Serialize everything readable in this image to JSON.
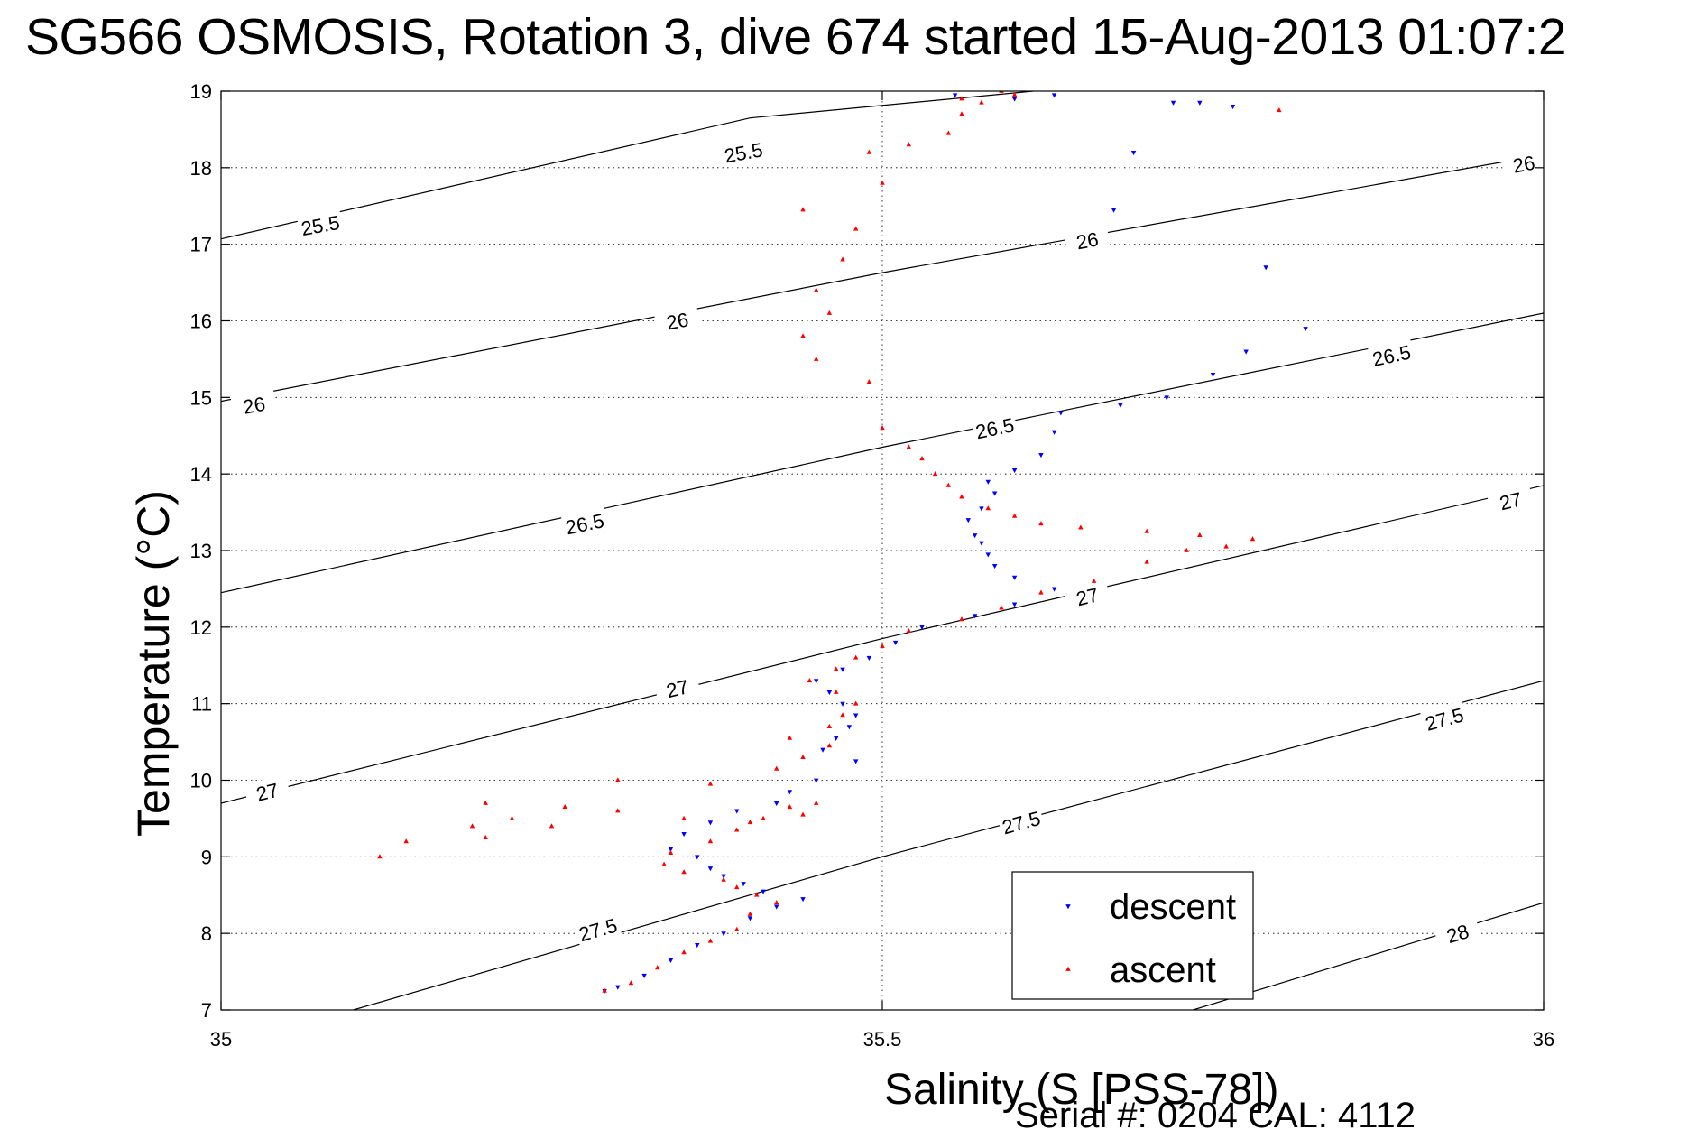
{
  "title": "SG566 OSMOSIS, Rotation 3, dive 674 started 15-Aug-2013 01:07:2",
  "footer": "Serial #: 0204  CAL: 4112",
  "chart_data": {
    "type": "scatter",
    "xlabel": "Salinity (S [PSS-78])",
    "ylabel": "Temperature (°C)",
    "xlim": [
      35,
      36
    ],
    "ylim": [
      7,
      19
    ],
    "xticks": [
      "35",
      "35.5",
      "36"
    ],
    "yticks": [
      "7",
      "8",
      "9",
      "10",
      "11",
      "12",
      "13",
      "14",
      "15",
      "16",
      "17",
      "18",
      "19"
    ],
    "grid": "dotted at x = 35.5 and at integer temperatures",
    "legend_position": "bottom-right",
    "colors": {
      "descent": "#0000ff",
      "ascent": "#ff0000",
      "contour": "#000000"
    },
    "contour_labels": [
      "25.5",
      "26",
      "26.5",
      "27",
      "27.5",
      "28"
    ],
    "series": [
      {
        "name": "descent",
        "marker": "triangle-down",
        "points": [
          [
            35.29,
            7.25
          ],
          [
            35.3,
            7.3
          ],
          [
            35.32,
            7.45
          ],
          [
            35.34,
            7.65
          ],
          [
            35.36,
            7.85
          ],
          [
            35.38,
            8.0
          ],
          [
            35.4,
            8.2
          ],
          [
            35.42,
            8.35
          ],
          [
            35.44,
            8.45
          ],
          [
            35.41,
            8.55
          ],
          [
            35.395,
            8.65
          ],
          [
            35.38,
            8.75
          ],
          [
            35.37,
            8.85
          ],
          [
            35.36,
            9.0
          ],
          [
            35.34,
            9.1
          ],
          [
            35.35,
            9.3
          ],
          [
            35.37,
            9.45
          ],
          [
            35.39,
            9.6
          ],
          [
            35.42,
            9.7
          ],
          [
            35.43,
            9.85
          ],
          [
            35.45,
            10.0
          ],
          [
            35.48,
            10.25
          ],
          [
            35.455,
            10.4
          ],
          [
            35.465,
            10.55
          ],
          [
            35.475,
            10.7
          ],
          [
            35.48,
            10.85
          ],
          [
            35.47,
            11.0
          ],
          [
            35.46,
            11.15
          ],
          [
            35.45,
            11.3
          ],
          [
            35.47,
            11.45
          ],
          [
            35.49,
            11.6
          ],
          [
            35.51,
            11.8
          ],
          [
            35.53,
            12.0
          ],
          [
            35.57,
            12.15
          ],
          [
            35.6,
            12.3
          ],
          [
            35.63,
            12.5
          ],
          [
            35.6,
            12.65
          ],
          [
            35.585,
            12.8
          ],
          [
            35.58,
            12.95
          ],
          [
            35.575,
            13.1
          ],
          [
            35.57,
            13.2
          ],
          [
            35.565,
            13.4
          ],
          [
            35.575,
            13.55
          ],
          [
            35.585,
            13.75
          ],
          [
            35.58,
            13.9
          ],
          [
            35.6,
            14.05
          ],
          [
            35.62,
            14.25
          ],
          [
            35.63,
            14.55
          ],
          [
            35.635,
            14.8
          ],
          [
            35.68,
            14.9
          ],
          [
            35.715,
            15.0
          ],
          [
            35.75,
            15.3
          ],
          [
            35.775,
            15.6
          ],
          [
            35.82,
            15.9
          ],
          [
            35.79,
            16.7
          ],
          [
            35.675,
            17.45
          ],
          [
            35.69,
            18.2
          ],
          [
            35.72,
            18.85
          ],
          [
            35.63,
            18.95
          ],
          [
            35.6,
            18.9
          ],
          [
            35.555,
            18.95
          ],
          [
            35.765,
            18.8
          ],
          [
            35.74,
            18.85
          ]
        ]
      },
      {
        "name": "ascent",
        "marker": "triangle-up",
        "points": [
          [
            35.29,
            7.25
          ],
          [
            35.31,
            7.35
          ],
          [
            35.33,
            7.55
          ],
          [
            35.35,
            7.75
          ],
          [
            35.37,
            7.9
          ],
          [
            35.39,
            8.05
          ],
          [
            35.4,
            8.25
          ],
          [
            35.42,
            8.4
          ],
          [
            35.405,
            8.5
          ],
          [
            35.39,
            8.6
          ],
          [
            35.38,
            8.7
          ],
          [
            35.35,
            8.8
          ],
          [
            35.335,
            8.9
          ],
          [
            35.34,
            9.05
          ],
          [
            35.37,
            9.2
          ],
          [
            35.39,
            9.35
          ],
          [
            35.41,
            9.5
          ],
          [
            35.43,
            9.65
          ],
          [
            35.45,
            9.7
          ],
          [
            35.44,
            9.55
          ],
          [
            35.4,
            9.45
          ],
          [
            35.35,
            9.5
          ],
          [
            35.3,
            9.6
          ],
          [
            35.26,
            9.65
          ],
          [
            35.22,
            9.5
          ],
          [
            35.2,
            9.7
          ],
          [
            35.3,
            10.0
          ],
          [
            35.19,
            9.4
          ],
          [
            35.14,
            9.2
          ],
          [
            35.12,
            9.0
          ],
          [
            35.2,
            9.25
          ],
          [
            35.25,
            9.4
          ],
          [
            35.37,
            9.95
          ],
          [
            35.42,
            10.15
          ],
          [
            35.44,
            10.3
          ],
          [
            35.46,
            10.45
          ],
          [
            35.43,
            10.55
          ],
          [
            35.46,
            10.7
          ],
          [
            35.47,
            10.85
          ],
          [
            35.48,
            11.0
          ],
          [
            35.465,
            11.15
          ],
          [
            35.445,
            11.3
          ],
          [
            35.465,
            11.45
          ],
          [
            35.48,
            11.6
          ],
          [
            35.5,
            11.75
          ],
          [
            35.52,
            11.95
          ],
          [
            35.56,
            12.1
          ],
          [
            35.59,
            12.25
          ],
          [
            35.62,
            12.45
          ],
          [
            35.66,
            12.6
          ],
          [
            35.7,
            12.85
          ],
          [
            35.73,
            13.0
          ],
          [
            35.76,
            13.05
          ],
          [
            35.78,
            13.15
          ],
          [
            35.74,
            13.2
          ],
          [
            35.7,
            13.25
          ],
          [
            35.65,
            13.3
          ],
          [
            35.62,
            13.35
          ],
          [
            35.6,
            13.45
          ],
          [
            35.58,
            13.55
          ],
          [
            35.56,
            13.7
          ],
          [
            35.55,
            13.85
          ],
          [
            35.54,
            14.0
          ],
          [
            35.53,
            14.2
          ],
          [
            35.52,
            14.35
          ],
          [
            35.5,
            14.6
          ],
          [
            35.49,
            15.2
          ],
          [
            35.45,
            15.5
          ],
          [
            35.44,
            15.8
          ],
          [
            35.46,
            16.1
          ],
          [
            35.45,
            16.4
          ],
          [
            35.47,
            16.8
          ],
          [
            35.48,
            17.2
          ],
          [
            35.44,
            17.45
          ],
          [
            35.5,
            17.8
          ],
          [
            35.49,
            18.2
          ],
          [
            35.52,
            18.3
          ],
          [
            35.55,
            18.45
          ],
          [
            35.56,
            18.7
          ],
          [
            35.575,
            18.85
          ],
          [
            35.6,
            18.95
          ],
          [
            35.59,
            19.0
          ],
          [
            35.56,
            18.9
          ],
          [
            35.8,
            18.75
          ]
        ]
      }
    ],
    "sigma_theta_contours": [
      {
        "label": "25.5",
        "points": [
          [
            35.0,
            17.07
          ],
          [
            35.4,
            18.65
          ],
          [
            35.614,
            19.0
          ]
        ]
      },
      {
        "label": "26",
        "points": [
          [
            35.0,
            14.95
          ],
          [
            35.5,
            16.63
          ],
          [
            36.0,
            18.17
          ]
        ]
      },
      {
        "label": "26.5",
        "points": [
          [
            35.0,
            12.45
          ],
          [
            35.5,
            14.35
          ],
          [
            36.0,
            16.1
          ]
        ]
      },
      {
        "label": "27",
        "points": [
          [
            35.0,
            9.7
          ],
          [
            35.5,
            11.85
          ],
          [
            36.0,
            13.85
          ]
        ]
      },
      {
        "label": "27.5",
        "points": [
          [
            35.1,
            7.0
          ],
          [
            35.5,
            9.0
          ],
          [
            36.0,
            11.3
          ]
        ]
      },
      {
        "label": "28",
        "points": [
          [
            35.735,
            7.0
          ],
          [
            36.0,
            8.4
          ]
        ]
      }
    ],
    "contour_label_positions": [
      {
        "label": "25.5",
        "x": 35.075,
        "y": 17.25
      },
      {
        "label": "25.5",
        "x": 35.395,
        "y": 18.2
      },
      {
        "label": "26",
        "x": 35.025,
        "y": 14.9
      },
      {
        "label": "26",
        "x": 35.345,
        "y": 16.0
      },
      {
        "label": "26",
        "x": 35.655,
        "y": 17.05
      },
      {
        "label": "26",
        "x": 35.985,
        "y": 18.05
      },
      {
        "label": "26.5",
        "x": 35.275,
        "y": 13.35
      },
      {
        "label": "26.5",
        "x": 35.585,
        "y": 14.6
      },
      {
        "label": "26.5",
        "x": 35.885,
        "y": 15.55
      },
      {
        "label": "27",
        "x": 35.035,
        "y": 9.85
      },
      {
        "label": "27",
        "x": 35.345,
        "y": 11.2
      },
      {
        "label": "27",
        "x": 35.655,
        "y": 12.4
      },
      {
        "label": "27",
        "x": 35.975,
        "y": 13.65
      },
      {
        "label": "27.5",
        "x": 35.285,
        "y": 8.05
      },
      {
        "label": "27.5",
        "x": 35.605,
        "y": 9.45
      },
      {
        "label": "27.5",
        "x": 35.925,
        "y": 10.8
      },
      {
        "label": "28",
        "x": 35.935,
        "y": 8.0
      }
    ],
    "legend": {
      "entries": [
        "descent",
        "ascent"
      ]
    }
  }
}
